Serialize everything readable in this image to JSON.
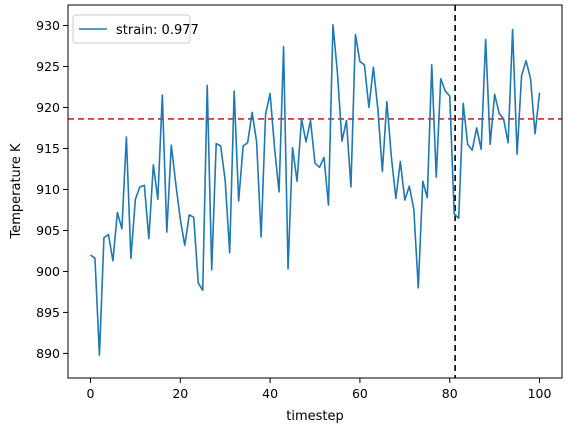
{
  "chart_data": {
    "type": "line",
    "xlabel": "timestep",
    "ylabel": "Temperature K",
    "xlim": [
      -5,
      105
    ],
    "ylim": [
      887,
      932.5
    ],
    "xticks": [
      0,
      20,
      40,
      60,
      80,
      100
    ],
    "yticks": [
      890,
      895,
      900,
      905,
      910,
      915,
      920,
      925,
      930
    ],
    "grid": false,
    "legend": {
      "placement": "top-left"
    },
    "series": [
      {
        "name": "strain: 0.977",
        "color": "#1f77b4",
        "x": [
          0,
          1,
          2,
          3,
          4,
          5,
          6,
          7,
          8,
          9,
          10,
          11,
          12,
          13,
          14,
          15,
          16,
          17,
          18,
          19,
          20,
          21,
          22,
          23,
          24,
          25,
          26,
          27,
          28,
          29,
          30,
          31,
          32,
          33,
          34,
          35,
          36,
          37,
          38,
          39,
          40,
          41,
          42,
          43,
          44,
          45,
          46,
          47,
          48,
          49,
          50,
          51,
          52,
          53,
          54,
          55,
          56,
          57,
          58,
          59,
          60,
          61,
          62,
          63,
          64,
          65,
          66,
          67,
          68,
          69,
          70,
          71,
          72,
          73,
          74,
          75,
          76,
          77,
          78,
          79,
          80,
          81,
          82,
          83,
          84,
          85,
          86,
          87,
          88,
          89,
          90,
          91,
          92,
          93,
          94,
          95,
          96,
          97,
          98,
          99,
          100
        ],
        "values": [
          902.0,
          901.6,
          889.8,
          904.1,
          904.5,
          901.3,
          907.2,
          905.2,
          916.4,
          901.6,
          908.8,
          910.3,
          910.5,
          904.0,
          913.0,
          908.8,
          921.5,
          904.8,
          915.4,
          910.7,
          906.4,
          903.2,
          906.9,
          906.6,
          898.6,
          897.7,
          922.7,
          900.2,
          915.6,
          915.3,
          911.1,
          902.3,
          922.0,
          908.6,
          915.3,
          915.7,
          919.4,
          915.8,
          904.2,
          919.2,
          921.7,
          915.0,
          909.7,
          927.4,
          900.3,
          915.1,
          911.0,
          918.6,
          915.8,
          918.4,
          913.2,
          912.7,
          913.9,
          908.1,
          930.1,
          924.2,
          915.9,
          918.4,
          910.3,
          928.9,
          925.6,
          925.2,
          920.0,
          924.9,
          919.8,
          912.2,
          920.7,
          914.0,
          908.9,
          913.4,
          908.7,
          910.4,
          907.6,
          898.0,
          911.0,
          909.0,
          925.2,
          911.5,
          923.5,
          922.0,
          921.4,
          907.0,
          906.5,
          920.5,
          915.5,
          914.8,
          917.5,
          914.9,
          928.3,
          915.5,
          921.6,
          919.3,
          918.6,
          915.7,
          929.5,
          914.3,
          923.9,
          925.7,
          923.5,
          916.8,
          921.8
        ]
      }
    ],
    "reference_lines": [
      {
        "orientation": "horizontal",
        "value": 918.6,
        "color": "#d62728",
        "style": "dashed"
      },
      {
        "orientation": "vertical",
        "value": 81.2,
        "color": "#000000",
        "style": "dashed"
      }
    ]
  }
}
